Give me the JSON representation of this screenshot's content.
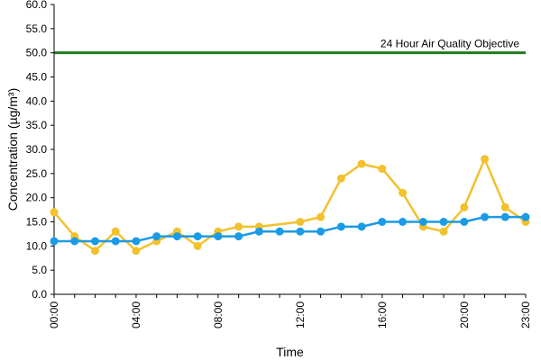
{
  "chart_data": {
    "type": "line",
    "xlabel": "Time",
    "ylabel": "Concentration (µg/m³)",
    "ylim": [
      0,
      60
    ],
    "yticks": [
      "0.0",
      "5.0",
      "10.0",
      "15.0",
      "20.0",
      "25.0",
      "30.0",
      "35.0",
      "40.0",
      "45.0",
      "50.0",
      "55.0",
      "60.0"
    ],
    "x": [
      "00:00",
      "01:00",
      "02:00",
      "03:00",
      "04:00",
      "05:00",
      "06:00",
      "07:00",
      "08:00",
      "09:00",
      "10:00",
      "11:00",
      "12:00",
      "13:00",
      "14:00",
      "15:00",
      "16:00",
      "17:00",
      "18:00",
      "19:00",
      "20:00",
      "21:00",
      "22:00",
      "23:00"
    ],
    "xtick_labels": [
      "00:00",
      "04:00",
      "08:00",
      "12:00",
      "16:00",
      "20:00",
      "23:00"
    ],
    "grid": false,
    "series": [
      {
        "color": "#f2c12e",
        "values": [
          17,
          12,
          9,
          13,
          9,
          11,
          13,
          10,
          13,
          14,
          14,
          null,
          15,
          16,
          24,
          27,
          26,
          21,
          14,
          13,
          18,
          28,
          18,
          15
        ]
      },
      {
        "color": "#1a9be6",
        "values": [
          11,
          11,
          11,
          11,
          11,
          12,
          12,
          12,
          12,
          12,
          13,
          13,
          13,
          13,
          14,
          14,
          15,
          15,
          15,
          15,
          15,
          16,
          16,
          16
        ]
      }
    ],
    "reference_line": {
      "label": "24 Hour Air Quality Objective",
      "value": 50,
      "color": "#1f7a1f"
    }
  }
}
